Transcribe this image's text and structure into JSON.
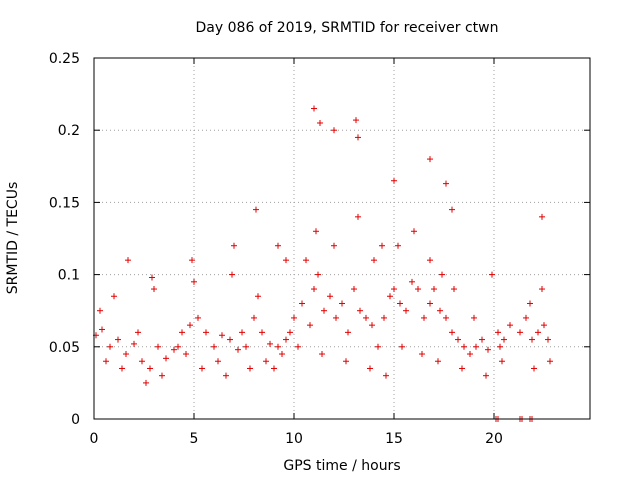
{
  "chart_data": {
    "type": "scatter",
    "title": "Day 086 of 2019, SRMTID for receiver ctwn",
    "xlabel": "GPS time / hours",
    "ylabel": "SRMTID / TECUs",
    "xlim": [
      0,
      24.8
    ],
    "ylim": [
      0,
      0.25
    ],
    "xticks": [
      0,
      5,
      10,
      15,
      20
    ],
    "xtick_labels": [
      "0",
      "5",
      "10",
      "15",
      "20"
    ],
    "yticks": [
      0,
      0.05,
      0.1,
      0.15,
      0.2,
      0.25
    ],
    "ytick_labels": [
      "0",
      "0.05",
      "0.1",
      "0.15",
      "0.2",
      "0.25"
    ],
    "grid": true,
    "marker": "plus",
    "series": [
      {
        "name": "SRMTID",
        "color": "#e00000",
        "x": [
          0.1,
          0.4,
          0.8,
          1.2,
          1.6,
          2.0,
          2.4,
          2.8,
          3.2,
          3.6,
          4.0,
          4.4,
          4.8,
          5.2,
          5.6,
          6.0,
          6.4,
          6.8,
          7.2,
          7.6,
          8.0,
          8.4,
          8.8,
          9.2,
          9.6,
          10.0,
          10.4,
          10.8,
          11.0,
          11.2,
          11.5,
          11.8,
          12.1,
          12.4,
          12.7,
          13.0,
          13.3,
          13.6,
          13.9,
          14.2,
          14.5,
          14.8,
          15.0,
          15.3,
          15.6,
          15.9,
          16.2,
          16.5,
          16.8,
          17.0,
          17.3,
          17.6,
          17.9,
          18.2,
          18.5,
          18.8,
          19.1,
          19.4,
          19.7,
          20.2,
          20.5,
          20.8,
          21.3,
          21.6,
          21.9,
          22.2,
          22.5,
          22.7,
          0.3,
          1.0,
          2.2,
          3.0,
          4.2,
          5.0,
          6.2,
          7.4,
          8.2,
          9.0,
          9.8,
          10.6,
          11.1,
          12.0,
          13.2,
          14.0,
          15.2,
          16.0,
          16.8,
          17.4,
          18.0,
          19.0,
          20.3,
          21.8,
          22.4,
          0.6,
          1.4,
          2.6,
          3.4,
          4.6,
          5.4,
          6.6,
          7.8,
          8.6,
          9.4,
          10.2,
          11.4,
          12.6,
          13.8,
          14.6,
          15.4,
          16.4,
          17.2,
          18.4,
          19.6,
          20.4,
          22.0,
          22.8,
          11.0,
          11.3,
          12.0,
          13.1,
          13.2,
          15.0,
          16.8,
          17.6,
          8.1,
          7.0,
          9.2,
          20.1,
          20.2,
          21.3,
          21.4,
          21.8,
          21.9,
          22.4,
          1.7,
          2.9,
          4.9,
          6.9,
          9.6,
          14.4,
          17.9,
          19.9
        ],
        "y": [
          0.058,
          0.062,
          0.05,
          0.055,
          0.045,
          0.052,
          0.04,
          0.035,
          0.05,
          0.042,
          0.048,
          0.06,
          0.065,
          0.07,
          0.06,
          0.05,
          0.058,
          0.055,
          0.048,
          0.05,
          0.07,
          0.06,
          0.052,
          0.05,
          0.055,
          0.07,
          0.08,
          0.065,
          0.09,
          0.1,
          0.075,
          0.085,
          0.07,
          0.08,
          0.06,
          0.09,
          0.075,
          0.07,
          0.065,
          0.05,
          0.07,
          0.085,
          0.09,
          0.08,
          0.075,
          0.095,
          0.09,
          0.07,
          0.08,
          0.09,
          0.075,
          0.07,
          0.06,
          0.055,
          0.05,
          0.045,
          0.05,
          0.055,
          0.048,
          0.06,
          0.055,
          0.065,
          0.06,
          0.07,
          0.055,
          0.06,
          0.065,
          0.055,
          0.075,
          0.085,
          0.06,
          0.09,
          0.05,
          0.095,
          0.04,
          0.06,
          0.085,
          0.035,
          0.06,
          0.11,
          0.13,
          0.12,
          0.14,
          0.11,
          0.12,
          0.13,
          0.11,
          0.1,
          0.09,
          0.07,
          0.05,
          0.08,
          0.09,
          0.04,
          0.035,
          0.025,
          0.03,
          0.045,
          0.035,
          0.03,
          0.035,
          0.04,
          0.045,
          0.05,
          0.045,
          0.04,
          0.035,
          0.03,
          0.05,
          0.045,
          0.04,
          0.035,
          0.03,
          0.04,
          0.035,
          0.04,
          0.215,
          0.205,
          0.2,
          0.207,
          0.195,
          0.165,
          0.18,
          0.163,
          0.145,
          0.12,
          0.12,
          0.0,
          0.0,
          0.0,
          0.0,
          0.0,
          0.0,
          0.14,
          0.11,
          0.098,
          0.11,
          0.1,
          0.11,
          0.12,
          0.145,
          0.1
        ]
      }
    ]
  }
}
